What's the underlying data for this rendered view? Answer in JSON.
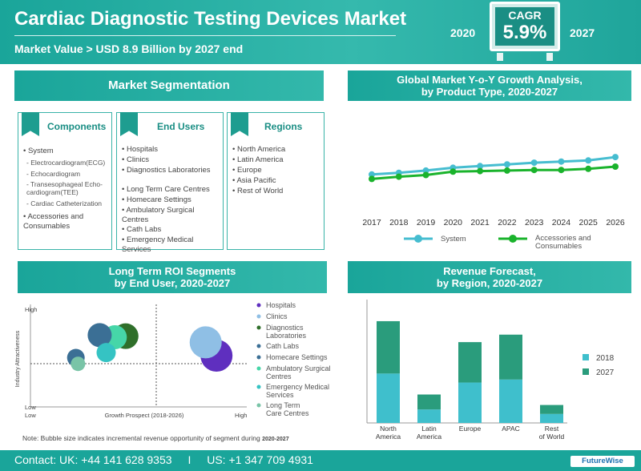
{
  "header": {
    "title": "Cardiac Diagnostic Testing Devices Market",
    "subtitle": "Market Value > USD 8.9 Billion by 2027 end",
    "year_start": "2020",
    "year_end": "2027",
    "cagr_label": "CAGR",
    "cagr_value": "5.9%"
  },
  "segmentation": {
    "title": "Market Segmentation",
    "components": {
      "title": "Components",
      "system": "System",
      "system_sub": [
        "Electrocardiogram(ECG)",
        "Echocardiogram",
        "Transesophageal Echo-cardiogram(TEE)",
        "Cardiac Catheterization"
      ],
      "other": "Accessories and Consumables"
    },
    "end_users": {
      "title": "End Users",
      "items": [
        "Hospitals",
        "Clinics",
        "Diagnostics Laboratories",
        "Long Term Care Centres",
        "Homecare Settings",
        "Ambulatory Surgical Centres",
        "Cath Labs",
        "Emergency Medical Services"
      ]
    },
    "regions": {
      "title": "Regions",
      "items": [
        "North America",
        "Latin America",
        "Europe",
        "Asia Pacific",
        "Rest of World"
      ]
    }
  },
  "growth": {
    "title_line1": "Global Market Y-o-Y Growth Analysis,",
    "title_line2": "by Product Type, 2020-2027"
  },
  "roi": {
    "title_line1": "Long Term ROI Segments",
    "title_line2": "by End User, 2020-2027",
    "note": "Note: Bubble size indicates incremental revenue opportunity of segment during",
    "note_period": "2020-2027"
  },
  "revenue": {
    "title_line1": "Revenue Forecast,",
    "title_line2": "by Region, 2020-2027"
  },
  "footer": {
    "contact_uk": "Contact:  UK: +44 141 628 9353",
    "separator": "I",
    "contact_us": "US:  +1 347 709 4931",
    "brand": "FutureWise"
  },
  "colors": {
    "teal": "#1aa59a",
    "system_line": "#46bdd0",
    "accessories_line": "#1ab32c",
    "bar_2018": "#3fbfcc",
    "bar_2027": "#2a9c7c"
  },
  "chart_data": [
    {
      "type": "line",
      "x": [
        "2017",
        "2018",
        "2019",
        "2020",
        "2021",
        "2022",
        "2023",
        "2024",
        "2025",
        "2026"
      ],
      "series": [
        {
          "name": "System",
          "color": "#46bdd0",
          "values": [
            4.6,
            4.9,
            5.3,
            5.8,
            6.1,
            6.4,
            6.7,
            6.9,
            7.1,
            7.7
          ]
        },
        {
          "name": "Accessories and Consumables",
          "color": "#1ab32c",
          "values": [
            3.8,
            4.2,
            4.5,
            5.1,
            5.2,
            5.3,
            5.4,
            5.4,
            5.6,
            6.0
          ]
        }
      ],
      "ylim": [
        0,
        10
      ],
      "grid": false,
      "legend": "bottom"
    },
    {
      "type": "scatter",
      "xlabel": "Growth Prospect (2018-2026)",
      "ylabel": "Industry Attractiveness",
      "x_low": "Low",
      "x_high": "High",
      "y_low": "Low",
      "y_high": "High",
      "xlim": [
        0,
        100
      ],
      "ylim": [
        0,
        100
      ],
      "points": [
        {
          "name": "Hospitals",
          "x": 86,
          "y": 50,
          "size": 20,
          "color": "#5f2fbf"
        },
        {
          "name": "Clinics",
          "x": 81,
          "y": 63,
          "size": 20,
          "color": "#8fbfe5"
        },
        {
          "name": "Diagnostics Laboratories",
          "x": 44,
          "y": 69,
          "size": 16,
          "color": "#2f6f2a"
        },
        {
          "name": "Cath Labs",
          "x": 32,
          "y": 70,
          "size": 15,
          "color": "#3b6f95"
        },
        {
          "name": "Homecare Settings",
          "x": 21,
          "y": 48,
          "size": 11,
          "color": "#3b6f95"
        },
        {
          "name": "Ambulatory Surgical Centres",
          "x": 39,
          "y": 68,
          "size": 15,
          "color": "#46d6a8"
        },
        {
          "name": "Emergency Medical Services",
          "x": 35,
          "y": 53,
          "size": 12,
          "color": "#35c3c3"
        },
        {
          "name": "Long Term Care Centres",
          "x": 22,
          "y": 42,
          "size": 9,
          "color": "#79c4a7"
        }
      ],
      "grid": false,
      "legend": "right"
    },
    {
      "type": "bar",
      "stacked": true,
      "categories": [
        "North America",
        "Latin America",
        "Europe",
        "APAC",
        "Rest of World"
      ],
      "series": [
        {
          "name": "2018",
          "color": "#3fbfcc",
          "values": [
            3.3,
            0.9,
            2.7,
            2.9,
            0.6
          ]
        },
        {
          "name": "2027",
          "color": "#2a9c7c",
          "values": [
            3.5,
            1.0,
            2.7,
            3.0,
            0.6
          ]
        }
      ],
      "ylim": [
        0,
        7.6
      ],
      "grid": false,
      "legend": "right"
    }
  ]
}
